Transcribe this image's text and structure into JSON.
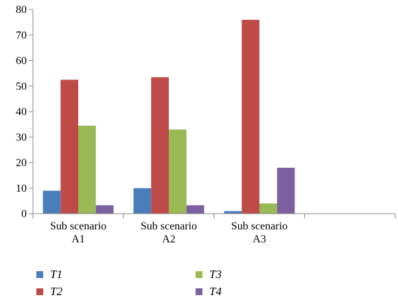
{
  "chart_data": {
    "type": "bar",
    "categories": [
      "Sub scenario\nA1",
      "Sub scenario\nA2",
      "Sub scenario\nA3",
      ""
    ],
    "series": [
      {
        "name": "T1",
        "values": [
          9,
          10,
          1,
          null
        ],
        "color": "#4a7ebb"
      },
      {
        "name": "T2",
        "values": [
          52.5,
          53.5,
          76,
          null
        ],
        "color": "#be4b48"
      },
      {
        "name": "T3",
        "values": [
          34.5,
          33,
          4,
          null
        ],
        "color": "#98b954"
      },
      {
        "name": "T4",
        "values": [
          3.3,
          3.3,
          18,
          null
        ],
        "color": "#7d60a0"
      }
    ],
    "ylim": [
      0,
      80
    ],
    "yticks": [
      0,
      10,
      20,
      30,
      40,
      50,
      60,
      70,
      80
    ],
    "grid": false,
    "legend_position": "bottom",
    "title": "",
    "xlabel": "",
    "ylabel": ""
  }
}
